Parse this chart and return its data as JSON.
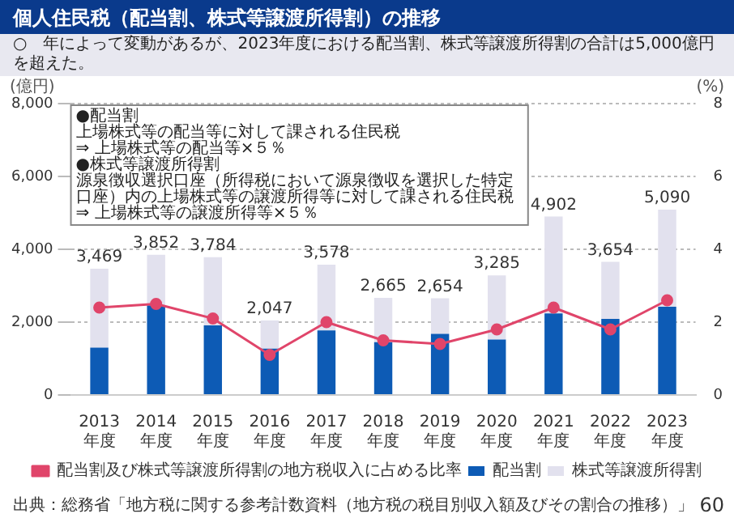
{
  "chart_data": {
    "type": "bar",
    "title": "個人住民税（配当割、株式等譲渡所得割）の推移",
    "subtitle": "○　年によって変動があるが、2023年度における配当割、株式等譲渡所得割の合計は5,000億円を超えた。",
    "categories": [
      "2013年度",
      "2014年度",
      "2015年度",
      "2016年度",
      "2017年度",
      "2018年度",
      "2019年度",
      "2020年度",
      "2021年度",
      "2022年度",
      "2023年度"
    ],
    "stacked": true,
    "series": [
      {
        "name": "配当割",
        "color": "#0d5bb5",
        "values": [
          1300,
          2460,
          1910,
          1270,
          1770,
          1450,
          1680,
          1520,
          2240,
          2090,
          2420
        ]
      },
      {
        "name": "株式等譲渡所得割",
        "color": "#e2e1ee",
        "values": [
          2169,
          1392,
          1874,
          777,
          1808,
          1215,
          974,
          1765,
          2662,
          1564,
          2670
        ]
      },
      {
        "name": "配当割及び株式等譲渡所得割の地方税収入に占める比率",
        "type": "line",
        "axis": "y2",
        "color": "#e0456a",
        "marker": "circle",
        "values": [
          2.4,
          2.5,
          2.1,
          1.1,
          2.0,
          1.5,
          1.4,
          1.8,
          2.4,
          1.8,
          2.6
        ]
      }
    ],
    "totals": [
      "3,469",
      "3,852",
      "3,784",
      "2,047",
      "3,578",
      "2,665",
      "2,654",
      "3,285",
      "4,902",
      "3,654",
      "5,090"
    ],
    "ylabel": "(億円)",
    "y2label": "(%)",
    "ylim": [
      0,
      8000
    ],
    "yticks": [
      {
        "value": 0,
        "label": "0"
      },
      {
        "value": 2000,
        "label": "2,000"
      },
      {
        "value": 4000,
        "label": "4,000"
      },
      {
        "value": 6000,
        "label": "6,000"
      },
      {
        "value": 8000,
        "label": "8,000"
      }
    ],
    "y2lim": [
      0,
      8
    ],
    "y2ticks": [
      0,
      2,
      4,
      6,
      8
    ],
    "grid": "y",
    "legend": "bottom",
    "annotations": [
      "●配当割",
      "上場株式等の配当等に対して課される住民税",
      "⇒ 上場株式等の配当等×５％",
      "●株式等譲渡所得割",
      "源泉徴収選択口座（所得税において源泉徴収を選択した特定口座）内の上場株式等の譲渡所得等に対して課される住民税",
      "⇒ 上場株式等の譲渡所得等×５％",
      "出典：総務省「地方税に関する参考計数資料（地方税の税目別収入額及びその割合の推移）」",
      "60"
    ]
  }
}
